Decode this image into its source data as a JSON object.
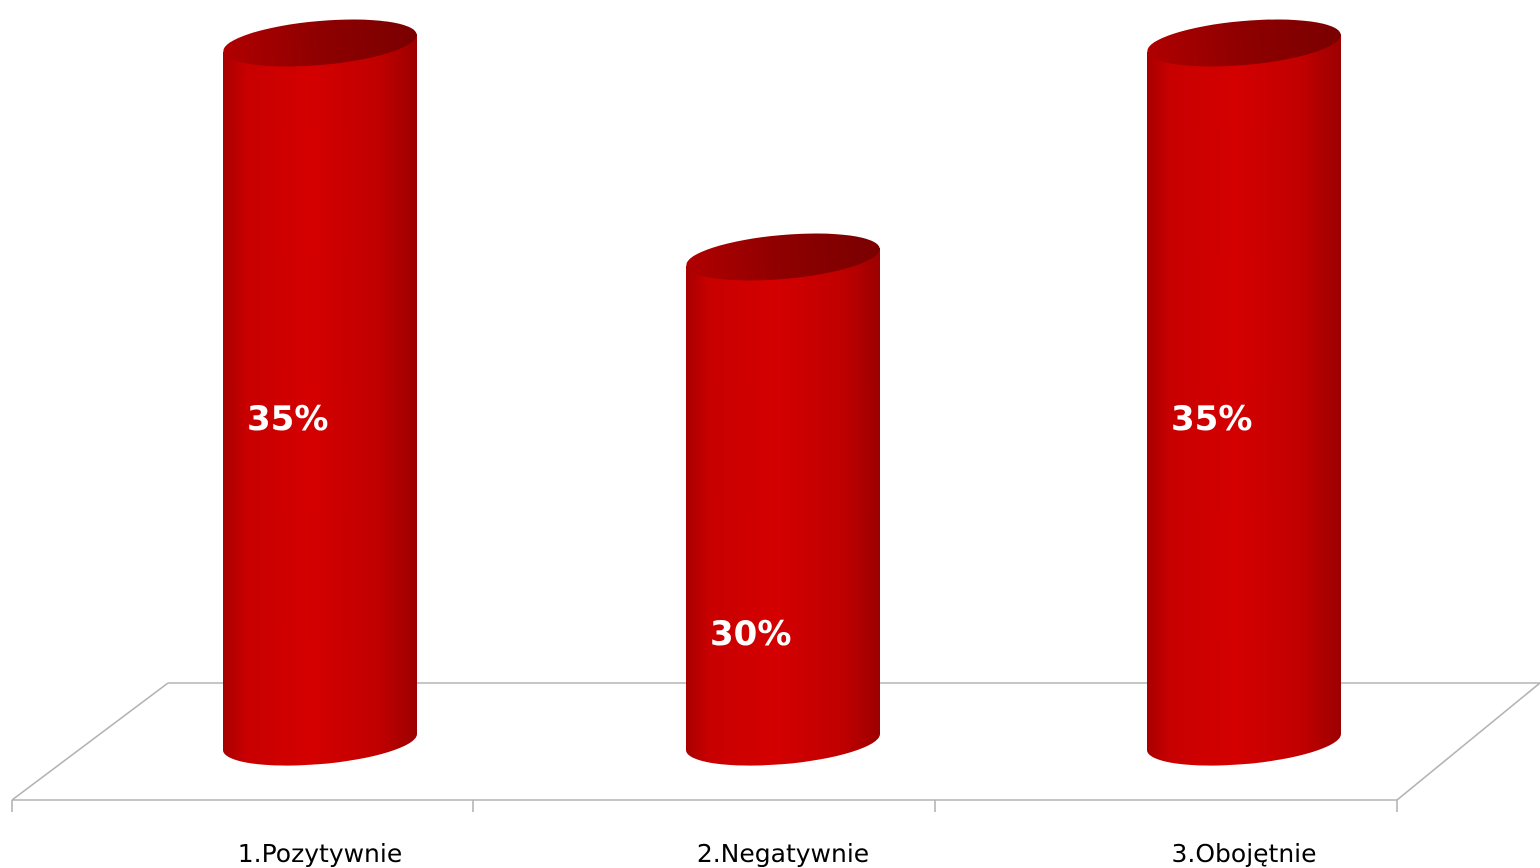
{
  "chart_data": {
    "type": "bar",
    "style": "3d-cylinder",
    "categories": [
      "1.Pozytywnie",
      "2.Negatywnie",
      "3.Obojętnie"
    ],
    "values": [
      35,
      30,
      35
    ],
    "data_labels": [
      "35%",
      "30%",
      "35%"
    ],
    "title": "",
    "xlabel": "",
    "ylabel": "",
    "ylim": [
      25,
      35
    ],
    "grid": false,
    "legend": "none",
    "colors": {
      "bar": "#cc0000",
      "bar_dark": "#8b0000",
      "bar_light": "#e00000",
      "floor": "#b3b3b3",
      "label": "#ffffff"
    }
  }
}
